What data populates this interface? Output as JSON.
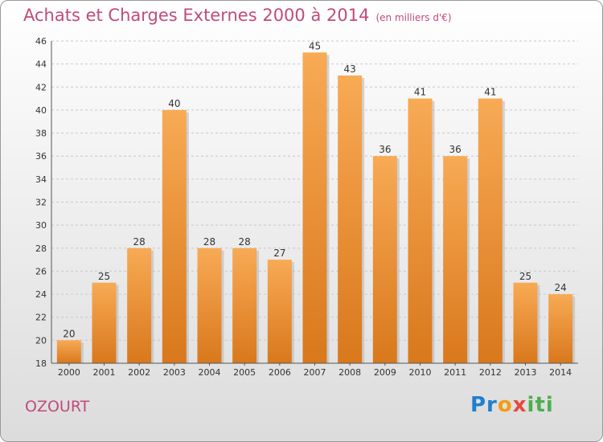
{
  "chart": {
    "title": "Achats et Charges Externes 2000 à 2014",
    "subtitle": "(en milliers d'€)",
    "place": "OZOURT"
  },
  "logo": {
    "text": "Proxiti"
  },
  "chart_data": {
    "type": "bar",
    "title": "Achats et Charges Externes 2000 à 2014",
    "subtitle": "(en milliers d'€)",
    "categories": [
      "2000",
      "2001",
      "2002",
      "2003",
      "2004",
      "2005",
      "2006",
      "2007",
      "2008",
      "2009",
      "2010",
      "2011",
      "2012",
      "2013",
      "2014"
    ],
    "values": [
      20,
      25,
      28,
      40,
      28,
      28,
      27,
      45,
      43,
      36,
      41,
      36,
      41,
      25,
      24
    ],
    "ylim": [
      18,
      46
    ],
    "yticks": [
      18,
      20,
      22,
      24,
      26,
      28,
      30,
      32,
      34,
      36,
      38,
      40,
      42,
      44,
      46
    ],
    "grid": true,
    "legend": "none",
    "bar_color": "#f5a34d",
    "bar_color_dark": "#d9781c"
  }
}
